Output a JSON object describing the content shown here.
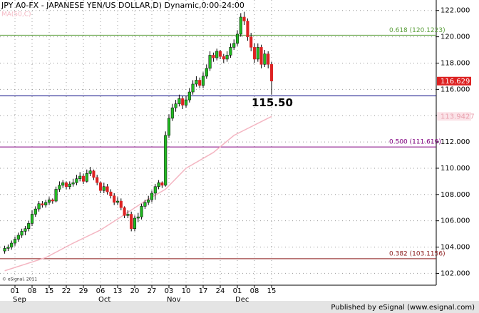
{
  "chart_data": {
    "type": "candlestick",
    "title": "JPY A0-FX - JAPANESE YEN/US DOLLAR,D) Dynamic,0:00-24:00",
    "ylim": [
      101.1,
      122.8
    ],
    "yticks": [
      {
        "value": 102,
        "label": "102.000"
      },
      {
        "value": 104,
        "label": "104.000"
      },
      {
        "value": 106,
        "label": "106.000"
      },
      {
        "value": 108,
        "label": "108.000"
      },
      {
        "value": 110,
        "label": "110.000"
      },
      {
        "value": 112,
        "label": "112.000"
      },
      {
        "value": 114,
        "label": "114.000"
      },
      {
        "value": 116,
        "label": "116.000"
      },
      {
        "value": 118,
        "label": "118.000"
      },
      {
        "value": 120,
        "label": "120.000"
      },
      {
        "value": 122,
        "label": "122.000"
      }
    ],
    "xticks": [
      {
        "value": 3,
        "label": "01"
      },
      {
        "value": 8,
        "label": "08"
      },
      {
        "value": 13,
        "label": "15"
      },
      {
        "value": 18,
        "label": "22"
      },
      {
        "value": 23,
        "label": "29"
      },
      {
        "value": 28,
        "label": "06"
      },
      {
        "value": 33,
        "label": "13"
      },
      {
        "value": 38,
        "label": "20"
      },
      {
        "value": 43,
        "label": "27"
      },
      {
        "value": 48,
        "label": "03"
      },
      {
        "value": 53,
        "label": "10"
      },
      {
        "value": 58,
        "label": "17"
      },
      {
        "value": 63,
        "label": "24"
      },
      {
        "value": 68,
        "label": "01"
      },
      {
        "value": 73,
        "label": "08"
      },
      {
        "value": 78,
        "label": "15"
      }
    ],
    "months": [
      {
        "value": 3,
        "label": "Sep"
      },
      {
        "value": 28,
        "label": "Oct"
      },
      {
        "value": 48,
        "label": "Nov"
      },
      {
        "value": 68,
        "label": "Dec"
      }
    ],
    "grid": true,
    "up_color": "#22bb22",
    "down_color": "#dd2222",
    "ohlc": [
      [
        103.7,
        104.1,
        103.5,
        103.9
      ],
      [
        103.9,
        104.2,
        103.7,
        104.0
      ],
      [
        104.0,
        104.5,
        103.8,
        104.3
      ],
      [
        104.3,
        104.8,
        104.1,
        104.6
      ],
      [
        104.6,
        105.1,
        104.4,
        104.9
      ],
      [
        104.9,
        105.4,
        104.7,
        105.2
      ],
      [
        105.2,
        105.6,
        104.9,
        105.4
      ],
      [
        105.4,
        106.0,
        105.2,
        105.8
      ],
      [
        105.8,
        106.8,
        105.6,
        106.5
      ],
      [
        106.5,
        107.1,
        106.3,
        106.9
      ],
      [
        106.9,
        107.5,
        106.7,
        107.3
      ],
      [
        107.3,
        107.5,
        107.0,
        107.2
      ],
      [
        107.2,
        107.6,
        107.0,
        107.4
      ],
      [
        107.4,
        107.8,
        107.2,
        107.6
      ],
      [
        107.6,
        107.7,
        107.3,
        107.5
      ],
      [
        107.5,
        108.6,
        107.4,
        108.4
      ],
      [
        108.4,
        109.0,
        108.2,
        108.7
      ],
      [
        108.7,
        109.1,
        108.5,
        108.9
      ],
      [
        108.9,
        109.0,
        108.4,
        108.6
      ],
      [
        108.6,
        109.0,
        108.4,
        108.8
      ],
      [
        108.8,
        109.2,
        108.6,
        108.9
      ],
      [
        108.9,
        109.5,
        108.7,
        109.2
      ],
      [
        109.2,
        109.7,
        109.0,
        109.4
      ],
      [
        109.4,
        109.6,
        108.8,
        109.0
      ],
      [
        109.0,
        109.9,
        108.9,
        109.6
      ],
      [
        109.6,
        110.1,
        109.4,
        109.8
      ],
      [
        109.8,
        109.9,
        109.1,
        109.3
      ],
      [
        109.3,
        109.5,
        108.7,
        108.9
      ],
      [
        108.9,
        109.0,
        108.1,
        108.3
      ],
      [
        108.3,
        108.9,
        108.1,
        108.6
      ],
      [
        108.6,
        108.8,
        108.0,
        108.2
      ],
      [
        108.2,
        108.4,
        107.7,
        107.9
      ],
      [
        107.9,
        108.1,
        107.2,
        107.4
      ],
      [
        107.4,
        107.8,
        107.2,
        107.5
      ],
      [
        107.5,
        107.7,
        106.8,
        107.0
      ],
      [
        107.0,
        107.1,
        106.2,
        106.4
      ],
      [
        106.4,
        106.8,
        106.2,
        106.5
      ],
      [
        106.5,
        106.7,
        105.2,
        105.4
      ],
      [
        105.4,
        106.4,
        105.2,
        106.2
      ],
      [
        106.2,
        106.6,
        105.9,
        106.3
      ],
      [
        106.3,
        107.3,
        106.1,
        107.1
      ],
      [
        107.1,
        107.6,
        106.9,
        107.4
      ],
      [
        107.4,
        107.9,
        107.2,
        107.6
      ],
      [
        107.6,
        108.3,
        107.4,
        108.1
      ],
      [
        108.1,
        108.8,
        107.6,
        108.6
      ],
      [
        108.6,
        109.1,
        108.4,
        108.9
      ],
      [
        108.9,
        109.0,
        108.5,
        108.7
      ],
      [
        108.7,
        112.8,
        108.6,
        112.5
      ],
      [
        112.5,
        114.1,
        112.3,
        113.8
      ],
      [
        113.8,
        114.9,
        113.6,
        114.6
      ],
      [
        114.6,
        115.2,
        114.3,
        114.9
      ],
      [
        114.9,
        115.6,
        114.7,
        115.3
      ],
      [
        115.3,
        115.5,
        114.5,
        114.8
      ],
      [
        114.8,
        115.5,
        114.6,
        115.2
      ],
      [
        115.2,
        116.1,
        115.0,
        115.8
      ],
      [
        115.8,
        116.7,
        115.6,
        116.4
      ],
      [
        116.4,
        117.0,
        116.2,
        116.7
      ],
      [
        116.7,
        116.9,
        116.1,
        116.3
      ],
      [
        116.3,
        117.3,
        116.1,
        117.0
      ],
      [
        117.0,
        117.9,
        116.8,
        117.6
      ],
      [
        117.6,
        118.9,
        117.4,
        118.6
      ],
      [
        118.6,
        118.8,
        118.1,
        118.4
      ],
      [
        118.4,
        119.1,
        118.2,
        118.9
      ],
      [
        118.9,
        119.0,
        118.3,
        118.5
      ],
      [
        118.5,
        118.7,
        118.0,
        118.3
      ],
      [
        118.3,
        118.9,
        118.1,
        118.6
      ],
      [
        118.6,
        119.5,
        118.4,
        119.2
      ],
      [
        119.2,
        119.8,
        119.0,
        119.5
      ],
      [
        119.5,
        120.5,
        119.3,
        120.2
      ],
      [
        120.2,
        121.8,
        120.0,
        121.5
      ],
      [
        121.5,
        121.9,
        120.9,
        121.2
      ],
      [
        121.2,
        121.4,
        119.7,
        120.0
      ],
      [
        120.0,
        120.3,
        118.9,
        119.2
      ],
      [
        119.2,
        119.5,
        118.0,
        118.3
      ],
      [
        118.3,
        119.5,
        118.1,
        119.2
      ],
      [
        119.2,
        119.4,
        117.6,
        117.9
      ],
      [
        117.9,
        119.0,
        117.7,
        118.7
      ],
      [
        118.7,
        118.9,
        117.6,
        117.9
      ],
      [
        117.9,
        118.1,
        115.6,
        116.629
      ]
    ],
    "ma": {
      "name": "MA(50,C)",
      "color": "#f4b6c2",
      "x": [
        0,
        12,
        20,
        28,
        34,
        41,
        47,
        53,
        61,
        67,
        78
      ],
      "values": [
        102.2,
        103.2,
        104.3,
        105.3,
        106.3,
        107.5,
        108.4,
        110.0,
        111.2,
        112.5,
        113.9427
      ]
    },
    "fib_levels": [
      {
        "value": 120.1223,
        "label": "0.618 (120.1223)",
        "color": "#5a9e3a"
      },
      {
        "value": 111.619,
        "label": "0.500 (111.619)",
        "color": "#800080"
      },
      {
        "value": 103.1156,
        "label": "0.382 (103.1156)",
        "color": "#8b1a1a"
      }
    ],
    "level": {
      "value": 115.5,
      "label": "115.50",
      "color": "#000080"
    },
    "copyright": "© eSignal, 2011",
    "footer": "Published by eSignal (www.esignal.com)"
  }
}
